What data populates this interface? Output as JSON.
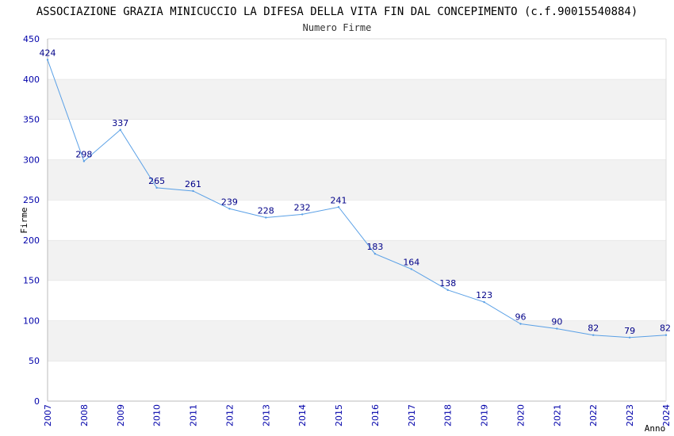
{
  "chart_data": {
    "type": "line",
    "title": "ASSOCIAZIONE GRAZIA MINICUCCIO LA DIFESA DELLA VITA FIN DAL CONCEPIMENTO (c.f.90015540884)",
    "subtitle": "Numero Firme",
    "xlabel": "Anno",
    "ylabel": "Firme",
    "ylim": [
      0,
      450
    ],
    "yticks": [
      0,
      50,
      100,
      150,
      200,
      250,
      300,
      350,
      400,
      450
    ],
    "grid": "horizontal bands",
    "x": [
      "2007",
      "2008",
      "2009",
      "2010",
      "2011",
      "2012",
      "2013",
      "2014",
      "2015",
      "2016",
      "2017",
      "2018",
      "2019",
      "2020",
      "2021",
      "2022",
      "2023",
      "2024"
    ],
    "series": [
      {
        "values": [
          424,
          298,
          337,
          265,
          261,
          239,
          228,
          232,
          241,
          183,
          164,
          138,
          123,
          96,
          90,
          82,
          79,
          82
        ]
      }
    ],
    "colors": {
      "line": "#5aa0e6",
      "band": "#f2f2f2",
      "grid": "#dddddd",
      "tick": "#0000aa",
      "label": "#000088"
    }
  }
}
